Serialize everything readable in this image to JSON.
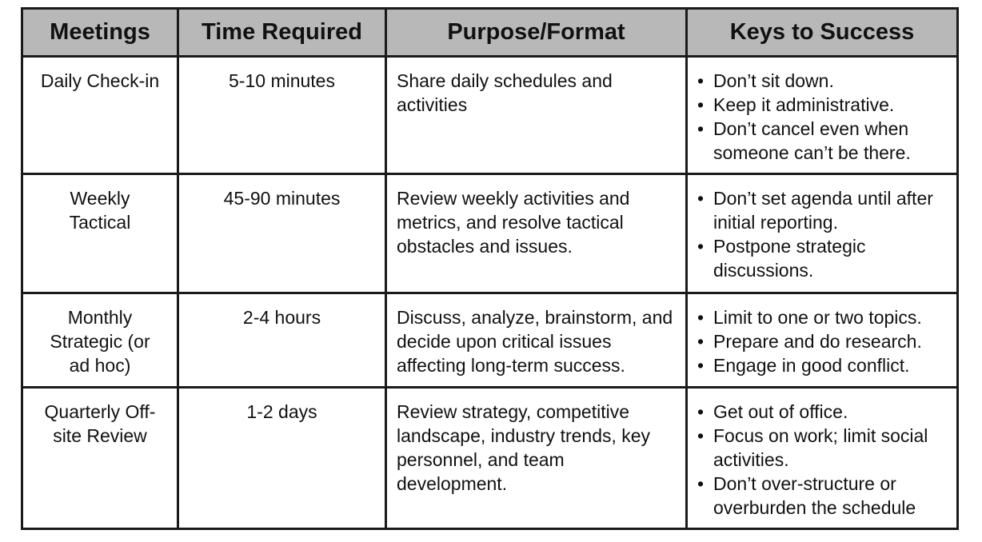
{
  "table": {
    "headers": [
      "Meetings",
      "Time Required",
      "Purpose/Format",
      "Keys to Success"
    ],
    "rows": [
      {
        "meeting": "Daily Check-in",
        "time": "5-10 minutes",
        "purpose": "Share daily schedules and activities",
        "keys": [
          "Don’t sit down.",
          "Keep it administrative.",
          "Don’t cancel even when someone can’t be there."
        ]
      },
      {
        "meeting": "Weekly Tactical",
        "time": "45-90 minutes",
        "purpose": "Review weekly activities and metrics, and resolve tactical obstacles and issues.",
        "keys": [
          "Don’t set agenda until after initial reporting.",
          "Postpone strategic discussions."
        ]
      },
      {
        "meeting": "Monthly Strategic (or ad hoc)",
        "time": "2-4 hours",
        "purpose": "Discuss, analyze, brainstorm, and decide upon critical issues affecting long-term success.",
        "keys": [
          "Limit to one or two topics.",
          "Prepare and do research.",
          "Engage in good conflict."
        ]
      },
      {
        "meeting": "Quarterly Off-site Review",
        "time": "1-2 days",
        "purpose": "Review strategy, competitive landscape, industry trends, key personnel, and team development.",
        "keys": [
          "Get out of office.",
          "Focus on work; limit social activities.",
          "Don’t over-structure or overburden the schedule"
        ]
      }
    ]
  }
}
